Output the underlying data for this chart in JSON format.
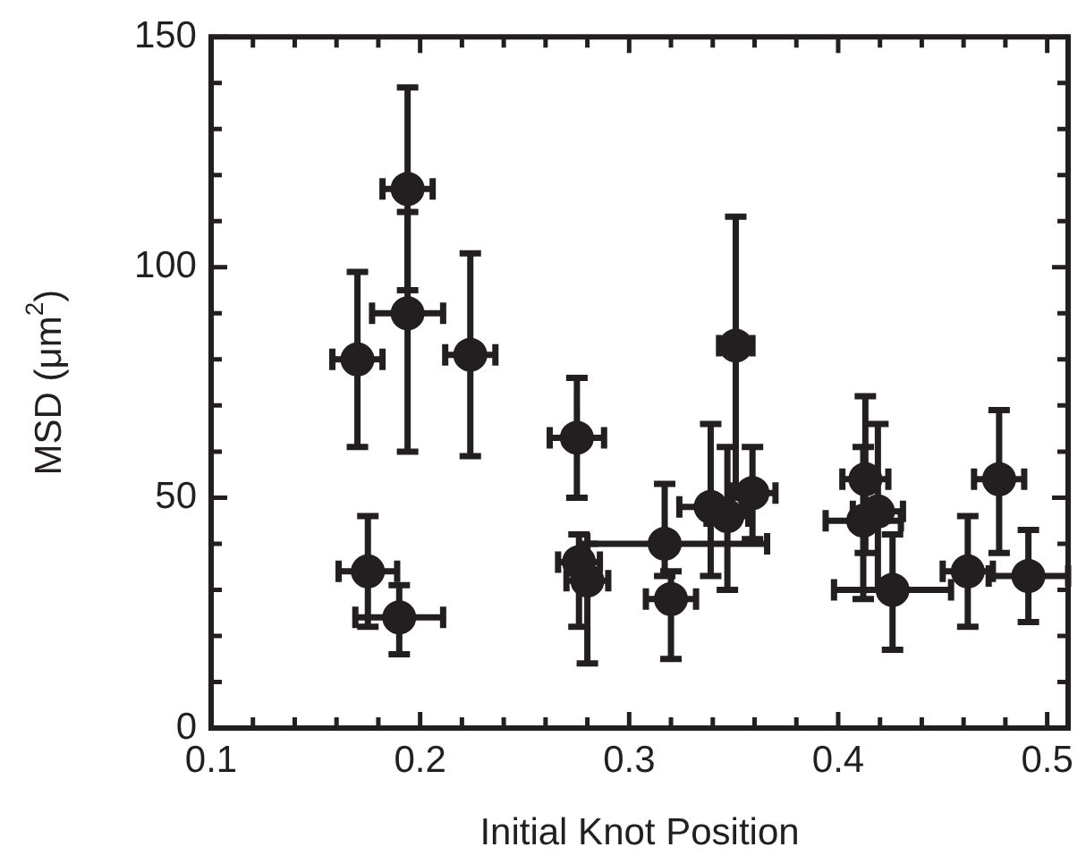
{
  "chart_data": {
    "type": "scatter",
    "xlabel": "Initial Knot Position",
    "ylabel": "MSD (μm$^{2}$)",
    "xlim": [
      0.1,
      0.51
    ],
    "ylim": [
      0,
      150
    ],
    "xticks": [
      0.1,
      {
        "value": 0.12,
        "label": null
      },
      {
        "value": 0.14,
        "label": null
      },
      {
        "value": 0.16,
        "label": null
      },
      {
        "value": 0.18,
        "label": null
      },
      0.2,
      {
        "value": 0.22,
        "label": null
      },
      {
        "value": 0.24,
        "label": null
      },
      {
        "value": 0.26,
        "label": null
      },
      {
        "value": 0.28,
        "label": null
      },
      0.3,
      {
        "value": 0.32,
        "label": null
      },
      {
        "value": 0.34,
        "label": null
      },
      {
        "value": 0.36,
        "label": null
      },
      {
        "value": 0.38,
        "label": null
      },
      0.4,
      {
        "value": 0.42,
        "label": null
      },
      {
        "value": 0.44,
        "label": null
      },
      {
        "value": 0.46,
        "label": null
      },
      {
        "value": 0.48,
        "label": null
      },
      0.5
    ],
    "yticks": [
      0,
      {
        "value": 10,
        "label": null
      },
      {
        "value": 20,
        "label": null
      },
      {
        "value": 30,
        "label": null
      },
      {
        "value": 40,
        "label": null
      },
      50,
      {
        "value": 60,
        "label": null
      },
      {
        "value": 70,
        "label": null
      },
      {
        "value": 80,
        "label": null
      },
      {
        "value": 90,
        "label": null
      },
      100,
      {
        "value": 110,
        "label": null
      },
      {
        "value": 120,
        "label": null
      },
      {
        "value": 130,
        "label": null
      },
      {
        "value": 140,
        "label": null
      },
      150
    ],
    "grid": false,
    "legend": false,
    "marker": "circle",
    "series": [
      {
        "color": "#231f20",
        "x": [
          0.17,
          0.194,
          0.194,
          0.224,
          0.175,
          0.19,
          0.275,
          0.276,
          0.28,
          0.317,
          0.32,
          0.339,
          0.347,
          0.351,
          0.359,
          0.413,
          0.412,
          0.419,
          0.426,
          0.462,
          0.477,
          0.491
        ],
        "values": [
          80,
          117,
          90,
          81,
          34,
          24,
          63,
          36,
          32,
          40,
          28,
          48,
          46,
          83,
          51,
          54,
          45,
          47,
          30,
          34,
          54,
          33
        ],
        "errors": [
          [
            61,
            99
          ],
          [
            95,
            139
          ],
          [
            60,
            112
          ],
          [
            59,
            103
          ],
          [
            22,
            46
          ],
          [
            16,
            31
          ],
          [
            50,
            76
          ],
          [
            22,
            42
          ],
          [
            14,
            40
          ],
          [
            33,
            53
          ],
          [
            15,
            34
          ],
          [
            33,
            66
          ],
          [
            30,
            61
          ],
          [
            50,
            111
          ],
          [
            41,
            61
          ],
          [
            38,
            72
          ],
          [
            28,
            61
          ],
          [
            30,
            66
          ],
          [
            17,
            42
          ],
          [
            22,
            46
          ],
          [
            38,
            69
          ],
          [
            23,
            43
          ]
        ],
        "xerrors": [
          [
            0.158,
            0.182
          ],
          [
            0.182,
            0.206
          ],
          [
            0.177,
            0.211
          ],
          [
            0.212,
            0.236
          ],
          [
            0.161,
            0.189
          ],
          [
            0.169,
            0.211
          ],
          [
            0.262,
            0.288
          ],
          [
            0.266,
            0.286
          ],
          [
            0.27,
            0.29
          ],
          [
            0.28,
            0.366
          ],
          [
            0.308,
            0.332
          ],
          [
            0.324,
            0.354
          ],
          [
            0.337,
            0.357
          ],
          [
            0.343,
            0.359
          ],
          [
            0.348,
            0.37
          ],
          [
            0.402,
            0.424
          ],
          [
            0.394,
            0.43
          ],
          [
            0.407,
            0.431
          ],
          [
            0.398,
            0.454
          ],
          [
            0.45,
            0.474
          ],
          [
            0.465,
            0.489
          ],
          [
            0.472,
            0.51
          ]
        ]
      }
    ]
  }
}
